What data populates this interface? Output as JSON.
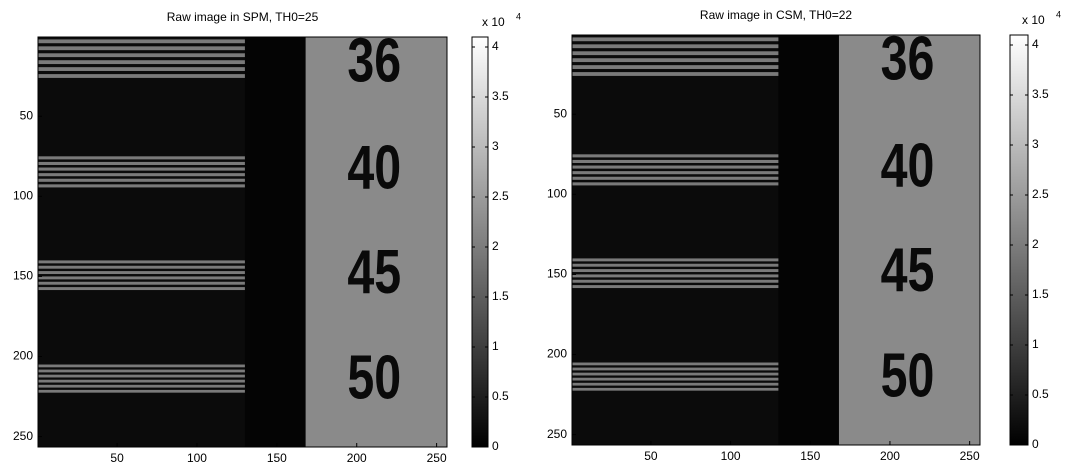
{
  "chart_data": [
    {
      "type": "image",
      "title": "Raw image in SPM, TH0=25",
      "xlim": [
        0.5,
        256.5
      ],
      "ylim": [
        0.5,
        256.5
      ],
      "y_reversed": true,
      "xticks": [
        50,
        100,
        150,
        200,
        250
      ],
      "yticks": [
        50,
        100,
        150,
        200,
        250
      ],
      "clim": [
        0,
        41000
      ],
      "cticks": [
        0,
        {
          "value": 5000,
          "label": "0.5"
        },
        {
          "value": 10000,
          "label": "1"
        },
        {
          "value": 15000,
          "label": "1.5"
        },
        {
          "value": 20000,
          "label": "2"
        },
        {
          "value": 25000,
          "label": "2.5"
        },
        {
          "value": 30000,
          "label": "3"
        },
        {
          "value": 35000,
          "label": "3.5"
        },
        {
          "value": 40000,
          "label": "4"
        }
      ],
      "colorbar_multiplier": "x 10",
      "colorbar_exponent": "4",
      "image_text": [
        "36",
        "40",
        "45",
        "50"
      ]
    },
    {
      "type": "image",
      "title": "Raw image in CSM, TH0=22",
      "xlim": [
        0.5,
        256.5
      ],
      "ylim": [
        0.5,
        256.5
      ],
      "y_reversed": true,
      "xticks": [
        50,
        100,
        150,
        200,
        250
      ],
      "yticks": [
        50,
        100,
        150,
        200,
        250
      ],
      "clim": [
        0,
        41000
      ],
      "cticks": [
        0,
        {
          "value": 5000,
          "label": "0.5"
        },
        {
          "value": 10000,
          "label": "1"
        },
        {
          "value": 15000,
          "label": "1.5"
        },
        {
          "value": 20000,
          "label": "2"
        },
        {
          "value": 25000,
          "label": "2.5"
        },
        {
          "value": 30000,
          "label": "3"
        },
        {
          "value": 35000,
          "label": "3.5"
        },
        {
          "value": 40000,
          "label": "4"
        }
      ],
      "colorbar_multiplier": "x 10",
      "colorbar_exponent": "4",
      "image_text": [
        "36",
        "40",
        "45",
        "50"
      ]
    }
  ]
}
